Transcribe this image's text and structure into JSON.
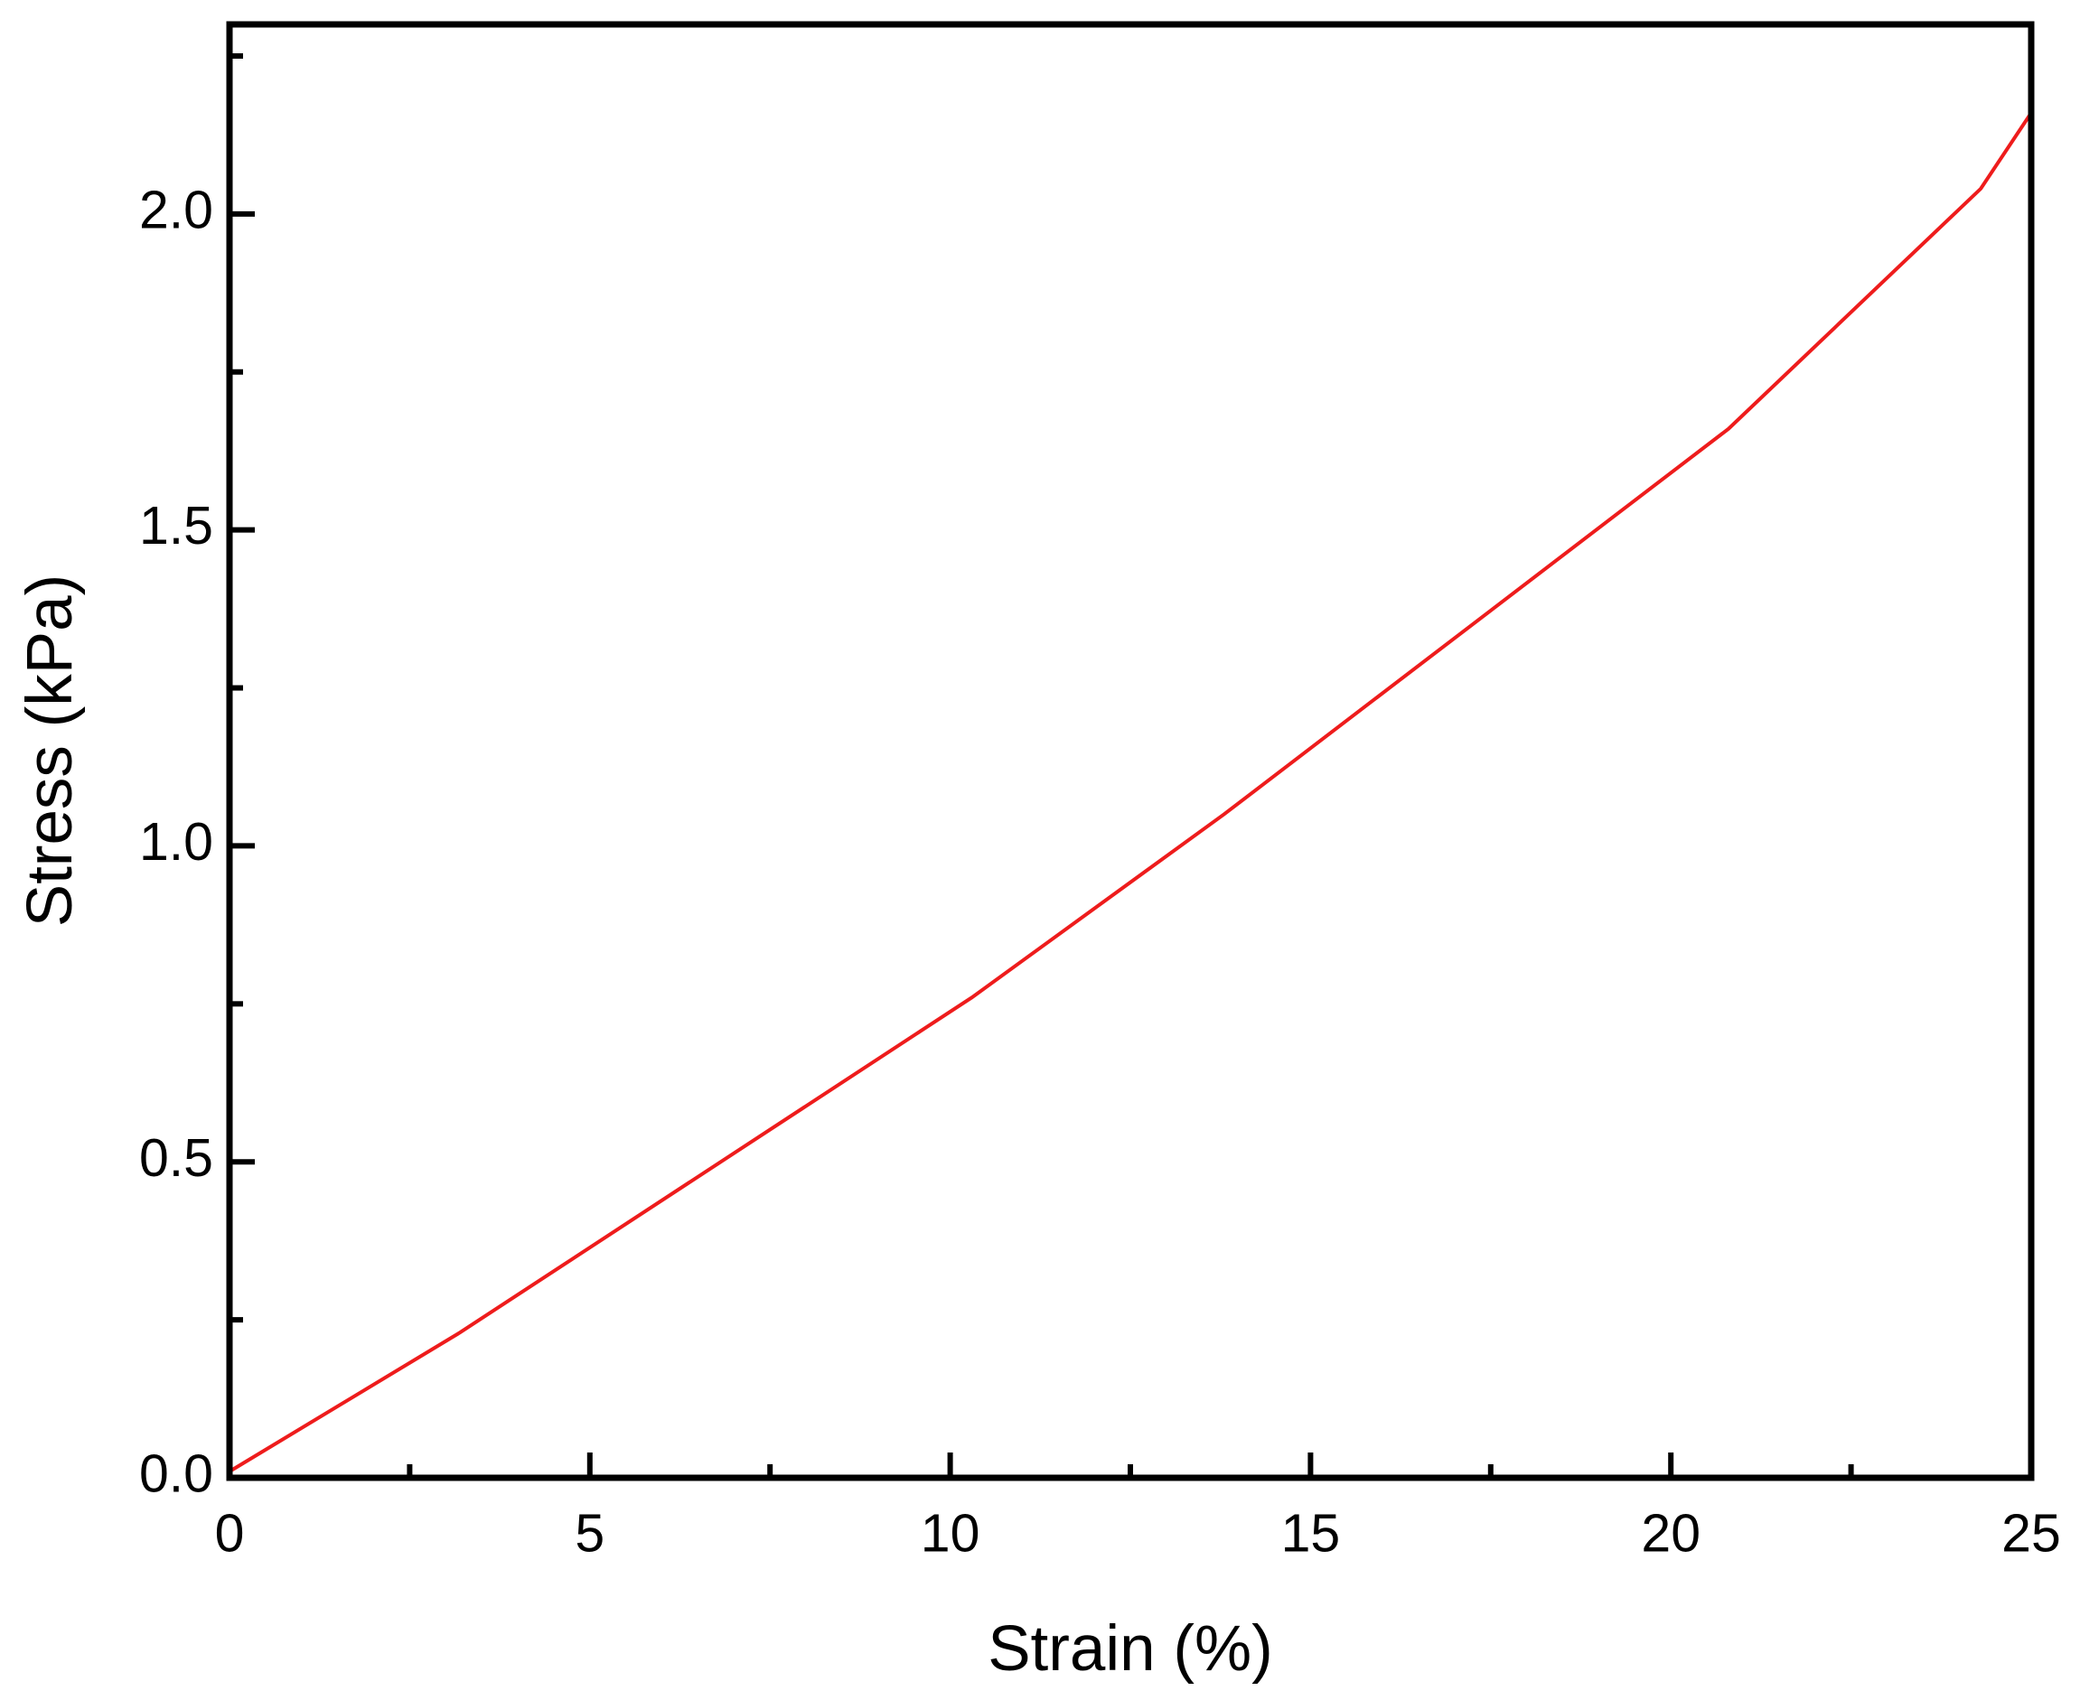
{
  "chart_data": {
    "type": "line",
    "x_label": "Strain (%)",
    "y_label": "Stress (kPa)",
    "series": [
      {
        "name": "Stress",
        "color": "#ee1c1c",
        "x": [
          0,
          3.2,
          10.3,
          13.8,
          20.8,
          24.3,
          25
        ],
        "values": [
          0.01,
          0.23,
          0.76,
          1.05,
          1.66,
          2.04,
          2.16
        ]
      }
    ],
    "xlim": [
      0,
      25
    ],
    "xticks": [
      0,
      5,
      10,
      15,
      20,
      25
    ],
    "xminorticks": [
      2.5,
      7.5,
      12.5,
      17.5,
      22.5
    ],
    "ylim": [
      0,
      2.3
    ],
    "yticks": [
      {
        "value": 0,
        "label": "0.0"
      },
      {
        "value": 0.5,
        "label": "0.5"
      },
      {
        "value": 1,
        "label": "1.0"
      },
      {
        "value": 1.5,
        "label": "1.5"
      },
      {
        "value": 2,
        "label": "2.0"
      }
    ],
    "yminorticks": [
      0.25,
      0.75,
      1.25,
      1.75,
      2.25
    ],
    "grid": false
  }
}
